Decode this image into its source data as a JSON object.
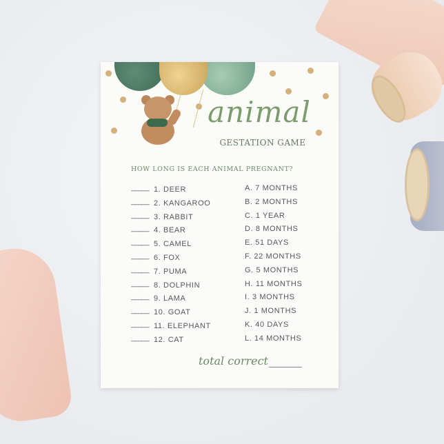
{
  "card": {
    "title": "animal",
    "subtitle": "GESTATION GAME",
    "question": "HOW LONG IS EACH ANIMAL PREGNANT?",
    "blank": "_____",
    "animals": [
      "1. DEER",
      "2. KANGAROO",
      "3. RABBIT",
      "4. BEAR",
      "5. CAMEL",
      "6. FOX",
      "7. PUMA",
      "8. DOLPHIN",
      "9. LAMA",
      "10. GOAT",
      "11. ELEPHANT",
      "12. CAT"
    ],
    "answers": [
      "A. 7 MONTHS",
      "B. 2 MONTHS",
      "C. 1 YEAR",
      "D. 8 MONTHS",
      "E. 51 DAYS",
      "F. 22 MONTHS",
      "G. 5 MONTHS",
      "H. 11 MONTHS",
      "I. 3 MONTHS",
      "J. 1 MONTHS",
      "K. 40 DAYS",
      "L. 14 MONTHS"
    ],
    "total_label": "total correct"
  },
  "colors": {
    "accent_green": "#7b9c6c",
    "gold_dots": "#d4b07a",
    "text": "#575757"
  }
}
